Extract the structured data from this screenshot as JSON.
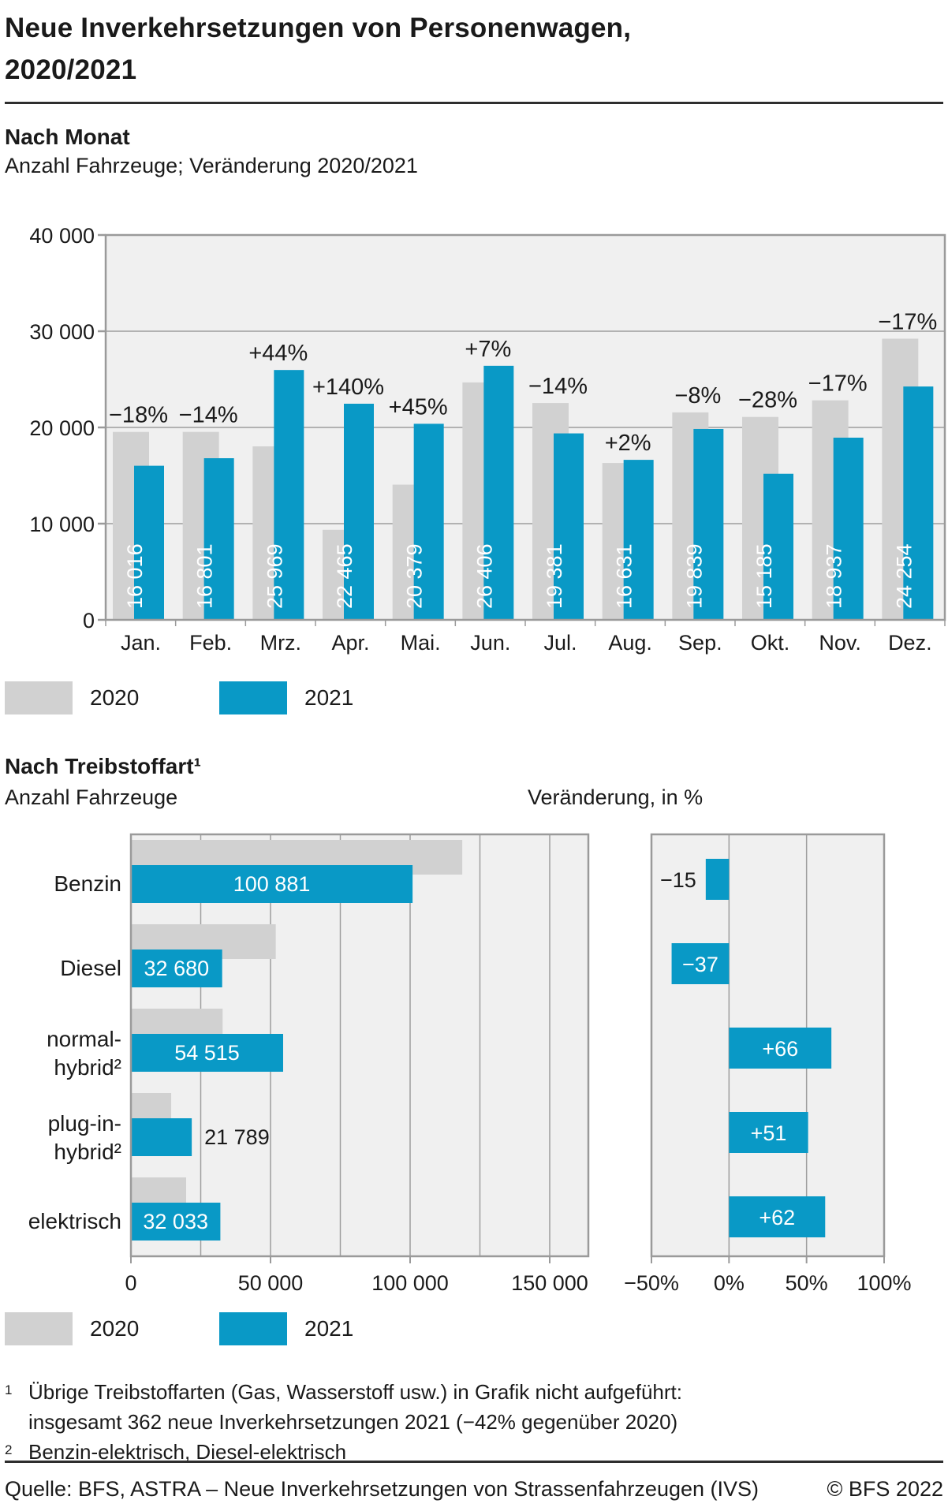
{
  "title": {
    "line1": "Neue Inverkehrsetzungen von Personenwagen,",
    "line2": "2020/2021"
  },
  "colors": {
    "bar_2021_blue": "#0999c6",
    "bar_2020_gray": "#d1d1d1",
    "plot_background": "#f0f0f0",
    "grid_line": "#9e9e9e",
    "axis_line": "#9a9a9a",
    "text": "#1a1a1a",
    "bar_label_white": "#ffffff",
    "rule_dark": "#2e2e2e"
  },
  "legend": {
    "items": [
      {
        "label": "2020",
        "color_key": "bar_2020_gray"
      },
      {
        "label": "2021",
        "color_key": "bar_2021_blue"
      }
    ]
  },
  "monthly_section": {
    "heading": "Nach Monat",
    "subtitle": "Anzahl Fahrzeuge; Veränderung 2020/2021"
  },
  "fuel_section": {
    "heading": "Nach Treibstoffart¹",
    "label_lines": [
      [
        "Benzin"
      ],
      [
        "Diesel"
      ],
      [
        "normal-",
        "hybrid²"
      ],
      [
        "plug-in-",
        "hybrid²"
      ],
      [
        "elektrisch"
      ]
    ]
  },
  "chart_data": [
    {
      "id": "monthly",
      "type": "bar",
      "title": "Nach Monat",
      "subtitle": "Anzahl Fahrzeuge; Veränderung 2020/2021",
      "categories": [
        "Jan.",
        "Feb.",
        "Mrz.",
        "Apr.",
        "Mai.",
        "Jun.",
        "Jul.",
        "Aug.",
        "Sep.",
        "Okt.",
        "Nov.",
        "Dez."
      ],
      "series": [
        {
          "name": "2020",
          "values_est": [
            19532,
            19536,
            18034,
            9360,
            14054,
            24678,
            22536,
            16305,
            21564,
            21090,
            22816,
            29222
          ]
        },
        {
          "name": "2021",
          "values": [
            16016,
            16801,
            25969,
            22465,
            20379,
            26406,
            19381,
            16631,
            19839,
            15185,
            18937,
            24254
          ]
        }
      ],
      "value_labels_2021": [
        "16 016",
        "16 801",
        "25 969",
        "22 465",
        "20 379",
        "26 406",
        "19 381",
        "16 631",
        "19 839",
        "15 185",
        "18 937",
        "24 254"
      ],
      "pct_change_labels": [
        "−18%",
        "−14%",
        "+44%",
        "+140%",
        "+45%",
        "+7%",
        "−14%",
        "+2%",
        "−8%",
        "−28%",
        "−17%",
        "−17%"
      ],
      "ylim": [
        0,
        40000
      ],
      "ytick_labels": [
        "0",
        "10 000",
        "20 000",
        "30 000",
        "40 000"
      ],
      "grid": true,
      "legend_position": "bottom"
    },
    {
      "id": "fuel_count",
      "type": "bar_horizontal",
      "title": "Anzahl Fahrzeuge",
      "categories": [
        "Benzin",
        "Diesel",
        "normal-hybrid²",
        "plug-in-hybrid²",
        "elektrisch"
      ],
      "series": [
        {
          "name": "2020",
          "values_est": [
            118684,
            51873,
            32840,
            14430,
            19773
          ]
        },
        {
          "name": "2021",
          "values": [
            100881,
            32680,
            54515,
            21789,
            32033
          ]
        }
      ],
      "value_labels_2021": [
        "100 881",
        "32 680",
        "54 515",
        "21 789",
        "32 033"
      ],
      "xlim": [
        0,
        163000
      ],
      "xtick_values": [
        0,
        50000,
        100000,
        150000
      ],
      "xtick_labels": [
        "0",
        "50 000",
        "100 000",
        "150 000"
      ],
      "grid_step": 25000,
      "legend_position": "bottom"
    },
    {
      "id": "fuel_pct",
      "type": "bar_horizontal",
      "title": "Veränderung, in %",
      "categories": [
        "Benzin",
        "Diesel",
        "normal-hybrid²",
        "plug-in-hybrid²",
        "elektrisch"
      ],
      "values": [
        -15,
        -37,
        66,
        51,
        62
      ],
      "value_labels": [
        "−15",
        "−37",
        "+66",
        "+51",
        "+62"
      ],
      "xlim": [
        -50,
        100
      ],
      "xtick_values": [
        -50,
        0,
        50,
        100
      ],
      "xtick_labels": [
        "−50%",
        "0%",
        "50%",
        "100%"
      ],
      "grid": true
    }
  ],
  "footnotes": {
    "fn1_sup": "1",
    "fn1_line1": "Übrige Treibstoffarten (Gas, Wasserstoff usw.) in Grafik nicht aufgeführt:",
    "fn1_line2": "insgesamt  362 neue Inverkehrsetzungen 2021 (−42% gegenüber 2020)",
    "fn2_sup": "2",
    "fn2_text": "Benzin-elektrisch, Diesel-elektrisch"
  },
  "footer": {
    "source": "Quelle: BFS, ASTRA – Neue Inverkehrsetzungen von Strassenfahrzeugen (IVS)",
    "copyright": "© BFS 2022"
  }
}
